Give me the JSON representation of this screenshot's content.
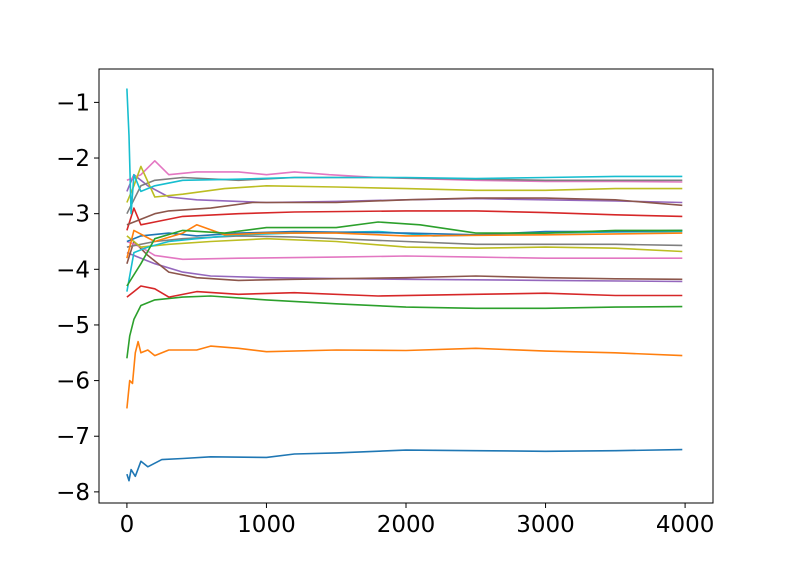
{
  "chart_data": {
    "type": "line",
    "title": "",
    "xlabel": "",
    "ylabel": "",
    "xlim": [
      -200,
      4200
    ],
    "ylim": [
      -8.2,
      -0.4
    ],
    "grid": false,
    "legend": "none",
    "x_ticks": [
      0,
      1000,
      2000,
      3000,
      4000
    ],
    "x_tick_labels": [
      "0",
      "1000",
      "2000",
      "3000",
      "4000"
    ],
    "y_ticks": [
      -8,
      -7,
      -6,
      -5,
      -4,
      -3,
      -2,
      -1
    ],
    "y_tick_labels": [
      "−8",
      "−7",
      "−6",
      "−5",
      "−4",
      "−3",
      "−2",
      "−1"
    ],
    "series": [
      {
        "color": "#1f77b4",
        "points": [
          [
            0,
            -7.68
          ],
          [
            15,
            -7.8
          ],
          [
            30,
            -7.6
          ],
          [
            60,
            -7.72
          ],
          [
            100,
            -7.45
          ],
          [
            150,
            -7.55
          ],
          [
            250,
            -7.42
          ],
          [
            400,
            -7.4
          ],
          [
            600,
            -7.37
          ],
          [
            1000,
            -7.38
          ],
          [
            1200,
            -7.32
          ],
          [
            1500,
            -7.3
          ],
          [
            2000,
            -7.25
          ],
          [
            2500,
            -7.26
          ],
          [
            3000,
            -7.27
          ],
          [
            3500,
            -7.26
          ],
          [
            3980,
            -7.24
          ]
        ]
      },
      {
        "color": "#ff7f0e",
        "points": [
          [
            0,
            -6.5
          ],
          [
            20,
            -6.0
          ],
          [
            40,
            -6.05
          ],
          [
            60,
            -5.5
          ],
          [
            80,
            -5.3
          ],
          [
            100,
            -5.5
          ],
          [
            150,
            -5.45
          ],
          [
            200,
            -5.55
          ],
          [
            300,
            -5.45
          ],
          [
            500,
            -5.45
          ],
          [
            600,
            -5.38
          ],
          [
            800,
            -5.42
          ],
          [
            1000,
            -5.48
          ],
          [
            1500,
            -5.45
          ],
          [
            2000,
            -5.46
          ],
          [
            2500,
            -5.42
          ],
          [
            3000,
            -5.47
          ],
          [
            3500,
            -5.5
          ],
          [
            3980,
            -5.55
          ]
        ]
      },
      {
        "color": "#2ca02c",
        "points": [
          [
            0,
            -5.6
          ],
          [
            20,
            -5.2
          ],
          [
            50,
            -4.9
          ],
          [
            100,
            -4.65
          ],
          [
            200,
            -4.55
          ],
          [
            400,
            -4.5
          ],
          [
            600,
            -4.48
          ],
          [
            1000,
            -4.55
          ],
          [
            1500,
            -4.62
          ],
          [
            2000,
            -4.68
          ],
          [
            2500,
            -4.7
          ],
          [
            3000,
            -4.7
          ],
          [
            3500,
            -4.68
          ],
          [
            3980,
            -4.67
          ]
        ]
      },
      {
        "color": "#d62728",
        "points": [
          [
            0,
            -4.5
          ],
          [
            50,
            -4.4
          ],
          [
            100,
            -4.3
          ],
          [
            200,
            -4.35
          ],
          [
            300,
            -4.5
          ],
          [
            500,
            -4.4
          ],
          [
            800,
            -4.45
          ],
          [
            1200,
            -4.42
          ],
          [
            1800,
            -4.48
          ],
          [
            2500,
            -4.45
          ],
          [
            3000,
            -4.43
          ],
          [
            3500,
            -4.47
          ],
          [
            3980,
            -4.47
          ]
        ]
      },
      {
        "color": "#9467bd",
        "points": [
          [
            0,
            -3.7
          ],
          [
            100,
            -3.8
          ],
          [
            200,
            -3.9
          ],
          [
            400,
            -4.05
          ],
          [
            600,
            -4.12
          ],
          [
            1000,
            -4.15
          ],
          [
            2000,
            -4.18
          ],
          [
            3000,
            -4.2
          ],
          [
            3980,
            -4.22
          ]
        ]
      },
      {
        "color": "#8c564b",
        "points": [
          [
            0,
            -3.9
          ],
          [
            50,
            -3.5
          ],
          [
            150,
            -3.75
          ],
          [
            300,
            -4.05
          ],
          [
            500,
            -4.15
          ],
          [
            800,
            -4.2
          ],
          [
            1200,
            -4.18
          ],
          [
            2000,
            -4.15
          ],
          [
            2500,
            -4.12
          ],
          [
            3000,
            -4.15
          ],
          [
            3500,
            -4.17
          ],
          [
            3980,
            -4.18
          ]
        ]
      },
      {
        "color": "#e377c2",
        "points": [
          [
            0,
            -3.5
          ],
          [
            100,
            -3.6
          ],
          [
            200,
            -3.75
          ],
          [
            400,
            -3.82
          ],
          [
            800,
            -3.8
          ],
          [
            1500,
            -3.78
          ],
          [
            2000,
            -3.76
          ],
          [
            2500,
            -3.78
          ],
          [
            3000,
            -3.8
          ],
          [
            3980,
            -3.8
          ]
        ]
      },
      {
        "color": "#7f7f7f",
        "points": [
          [
            0,
            -3.6
          ],
          [
            200,
            -3.5
          ],
          [
            400,
            -3.45
          ],
          [
            800,
            -3.4
          ],
          [
            1200,
            -3.42
          ],
          [
            2000,
            -3.5
          ],
          [
            2500,
            -3.55
          ],
          [
            3000,
            -3.55
          ],
          [
            3500,
            -3.55
          ],
          [
            3980,
            -3.57
          ]
        ]
      },
      {
        "color": "#bcbd22",
        "points": [
          [
            0,
            -3.4
          ],
          [
            100,
            -3.6
          ],
          [
            300,
            -3.55
          ],
          [
            600,
            -3.5
          ],
          [
            1000,
            -3.45
          ],
          [
            1500,
            -3.5
          ],
          [
            2000,
            -3.6
          ],
          [
            2500,
            -3.62
          ],
          [
            3000,
            -3.6
          ],
          [
            3500,
            -3.62
          ],
          [
            3980,
            -3.68
          ]
        ]
      },
      {
        "color": "#17becf",
        "points": [
          [
            0,
            -4.4
          ],
          [
            50,
            -3.7
          ],
          [
            150,
            -3.6
          ],
          [
            300,
            -3.5
          ],
          [
            500,
            -3.45
          ],
          [
            800,
            -3.38
          ],
          [
            1200,
            -3.35
          ],
          [
            1800,
            -3.32
          ],
          [
            2200,
            -3.4
          ],
          [
            2600,
            -3.38
          ],
          [
            3000,
            -3.35
          ],
          [
            3500,
            -3.33
          ],
          [
            3980,
            -3.32
          ]
        ]
      },
      {
        "color": "#1f77b4",
        "points": [
          [
            0,
            -3.5
          ],
          [
            100,
            -3.4
          ],
          [
            300,
            -3.35
          ],
          [
            500,
            -3.4
          ],
          [
            800,
            -3.35
          ],
          [
            1200,
            -3.32
          ],
          [
            2000,
            -3.35
          ],
          [
            2500,
            -3.38
          ],
          [
            3000,
            -3.32
          ],
          [
            3500,
            -3.32
          ],
          [
            3980,
            -3.3
          ]
        ]
      },
      {
        "color": "#ff7f0e",
        "points": [
          [
            0,
            -3.8
          ],
          [
            50,
            -3.3
          ],
          [
            200,
            -3.5
          ],
          [
            400,
            -3.35
          ],
          [
            500,
            -3.2
          ],
          [
            700,
            -3.38
          ],
          [
            1000,
            -3.35
          ],
          [
            1500,
            -3.35
          ],
          [
            2000,
            -3.4
          ],
          [
            3000,
            -3.38
          ],
          [
            3980,
            -3.35
          ]
        ]
      },
      {
        "color": "#2ca02c",
        "points": [
          [
            0,
            -4.3
          ],
          [
            100,
            -3.9
          ],
          [
            200,
            -3.45
          ],
          [
            400,
            -3.3
          ],
          [
            700,
            -3.35
          ],
          [
            1000,
            -3.25
          ],
          [
            1500,
            -3.25
          ],
          [
            1800,
            -3.15
          ],
          [
            2100,
            -3.2
          ],
          [
            2500,
            -3.35
          ],
          [
            3000,
            -3.35
          ],
          [
            3500,
            -3.3
          ],
          [
            3980,
            -3.3
          ]
        ]
      },
      {
        "color": "#d62728",
        "points": [
          [
            0,
            -3.3
          ],
          [
            50,
            -2.9
          ],
          [
            100,
            -3.2
          ],
          [
            200,
            -3.15
          ],
          [
            400,
            -3.05
          ],
          [
            800,
            -3.0
          ],
          [
            1200,
            -2.97
          ],
          [
            2000,
            -2.95
          ],
          [
            2500,
            -2.95
          ],
          [
            3000,
            -2.98
          ],
          [
            3500,
            -3.02
          ],
          [
            3980,
            -3.05
          ]
        ]
      },
      {
        "color": "#9467bd",
        "points": [
          [
            0,
            -2.6
          ],
          [
            50,
            -2.3
          ],
          [
            150,
            -2.5
          ],
          [
            300,
            -2.7
          ],
          [
            500,
            -2.75
          ],
          [
            1000,
            -2.8
          ],
          [
            1500,
            -2.78
          ],
          [
            2000,
            -2.75
          ],
          [
            2500,
            -2.73
          ],
          [
            3000,
            -2.75
          ],
          [
            3500,
            -2.77
          ],
          [
            3980,
            -2.8
          ]
        ]
      },
      {
        "color": "#8c564b",
        "points": [
          [
            0,
            -3.2
          ],
          [
            100,
            -3.1
          ],
          [
            200,
            -3.0
          ],
          [
            300,
            -2.95
          ],
          [
            600,
            -2.9
          ],
          [
            900,
            -2.8
          ],
          [
            1500,
            -2.8
          ],
          [
            2000,
            -2.75
          ],
          [
            2500,
            -2.72
          ],
          [
            3000,
            -2.72
          ],
          [
            3500,
            -2.75
          ],
          [
            3980,
            -2.85
          ]
        ]
      },
      {
        "color": "#e377c2",
        "points": [
          [
            0,
            -2.4
          ],
          [
            100,
            -2.3
          ],
          [
            200,
            -2.05
          ],
          [
            300,
            -2.3
          ],
          [
            500,
            -2.25
          ],
          [
            800,
            -2.25
          ],
          [
            1000,
            -2.3
          ],
          [
            1200,
            -2.25
          ],
          [
            1450,
            -2.3
          ],
          [
            1800,
            -2.35
          ],
          [
            2500,
            -2.4
          ],
          [
            3000,
            -2.42
          ],
          [
            3500,
            -2.42
          ],
          [
            3980,
            -2.43
          ]
        ]
      },
      {
        "color": "#7f7f7f",
        "points": [
          [
            0,
            -3.0
          ],
          [
            100,
            -2.5
          ],
          [
            200,
            -2.4
          ],
          [
            400,
            -2.35
          ],
          [
            800,
            -2.4
          ],
          [
            1200,
            -2.35
          ],
          [
            1800,
            -2.35
          ],
          [
            2500,
            -2.38
          ],
          [
            3000,
            -2.4
          ],
          [
            3500,
            -2.4
          ],
          [
            3980,
            -2.4
          ]
        ]
      },
      {
        "color": "#bcbd22",
        "points": [
          [
            0,
            -2.8
          ],
          [
            50,
            -2.5
          ],
          [
            100,
            -2.15
          ],
          [
            200,
            -2.7
          ],
          [
            400,
            -2.65
          ],
          [
            700,
            -2.55
          ],
          [
            1000,
            -2.5
          ],
          [
            1500,
            -2.52
          ],
          [
            2000,
            -2.55
          ],
          [
            2500,
            -2.58
          ],
          [
            3000,
            -2.58
          ],
          [
            3500,
            -2.55
          ],
          [
            3980,
            -2.55
          ]
        ]
      },
      {
        "color": "#17becf",
        "points": [
          [
            0,
            -0.75
          ],
          [
            15,
            -1.6
          ],
          [
            30,
            -3.0
          ],
          [
            50,
            -2.3
          ],
          [
            100,
            -2.6
          ],
          [
            200,
            -2.5
          ],
          [
            400,
            -2.4
          ],
          [
            800,
            -2.38
          ],
          [
            1200,
            -2.35
          ],
          [
            2000,
            -2.35
          ],
          [
            2500,
            -2.37
          ],
          [
            3000,
            -2.35
          ],
          [
            3500,
            -2.33
          ],
          [
            3980,
            -2.33
          ]
        ]
      }
    ]
  }
}
